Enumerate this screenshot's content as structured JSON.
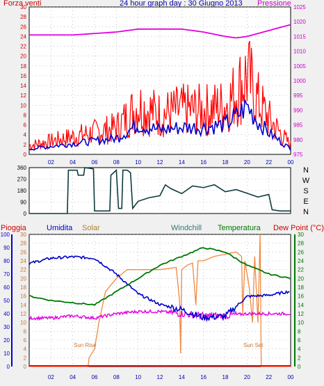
{
  "top": {
    "left_label": "Forza venti",
    "title": "24 hour graph day : 30 Giugno 2013",
    "right_label": "Pressione",
    "y_left_ticks": [
      "30",
      "28",
      "26",
      "24",
      "22",
      "20",
      "18",
      "16",
      "14",
      "12",
      "10",
      "8",
      "6",
      "4",
      "2",
      "0"
    ],
    "y_right_ticks": [
      "1025",
      "1020",
      "1015",
      "1010",
      "1005",
      "1000",
      "995",
      "990",
      "985",
      "980",
      "975"
    ]
  },
  "mid": {
    "y_ticks": [
      "360",
      "270",
      "180",
      "90",
      "0"
    ],
    "compass": [
      "N",
      "W",
      "S",
      "E",
      "N"
    ]
  },
  "bottom": {
    "labels": {
      "pioggia": "Pioggia",
      "umidita": "Umidita",
      "solar": "Solar",
      "windchill": "Windchill",
      "temperatura": "Temperatura",
      "dew": "Dew Point (°C)"
    },
    "y_outer_left": [
      "100",
      "90",
      "80",
      "70",
      "60",
      "50",
      "40",
      "30",
      "20",
      "10",
      "0"
    ],
    "y_inner_left": [
      "30",
      "28",
      "26",
      "24",
      "22",
      "20",
      "18",
      "16",
      "14",
      "12",
      "10",
      "8",
      "6",
      "4",
      "2",
      "0"
    ],
    "y_right": [
      "30",
      "28",
      "26",
      "24",
      "22",
      "20",
      "18",
      "16",
      "14",
      "12",
      "10",
      "8",
      "6",
      "4",
      "2",
      "0"
    ],
    "sun_rise": "Sun Rise",
    "sun_set": "Sun Set"
  },
  "x_ticks": [
    "02",
    "04",
    "06",
    "08",
    "10",
    "12",
    "14",
    "16",
    "18",
    "20",
    "22",
    "00"
  ],
  "colors": {
    "wind": "#ff0000",
    "gust": "#0000cc",
    "pressure": "#e000e0",
    "direction": "#0d3b3b",
    "humidity": "#0000cc",
    "solar": "#f0883e",
    "windchill": "#e000e0",
    "temperature": "#007700",
    "dew": "#e000e0",
    "rain": "#ff0000"
  },
  "chart_data": [
    {
      "type": "line",
      "title": "24 hour graph day : 30 Giugno 2013",
      "x": [
        "00",
        "02",
        "04",
        "06",
        "08",
        "10",
        "12",
        "14",
        "16",
        "18",
        "19",
        "20",
        "21",
        "22",
        "23",
        "24"
      ],
      "ylim_left": [
        0,
        30
      ],
      "ylim_right": [
        975,
        1025
      ],
      "series": [
        {
          "name": "Forza venti",
          "values": [
            2,
            3,
            4,
            5,
            6,
            11,
            9,
            10,
            10,
            11,
            14,
            18,
            12,
            8,
            5,
            2
          ]
        },
        {
          "name": "Pressione",
          "values": [
            1015.5,
            1015.5,
            1015.5,
            1016,
            1016.5,
            1017.5,
            1017.5,
            1017.5,
            1016.5,
            1015,
            1014.5,
            1015,
            1016,
            1017,
            1018,
            1019
          ]
        }
      ]
    },
    {
      "type": "line",
      "x": [
        "00",
        "02",
        "04",
        "06",
        "07",
        "08",
        "09",
        "10",
        "12",
        "14",
        "16",
        "18",
        "20",
        "22",
        "23",
        "24"
      ],
      "ylim": [
        0,
        360
      ],
      "series": [
        {
          "values": [
            0,
            0,
            0,
            0,
            0,
            300,
            300,
            120,
            160,
            210,
            220,
            230,
            190,
            150,
            30,
            20
          ]
        }
      ]
    },
    {
      "type": "line",
      "x": [
        "00",
        "02",
        "04",
        "06",
        "08",
        "10",
        "12",
        "14",
        "16",
        "18",
        "20",
        "22",
        "24"
      ],
      "ylim_left": [
        0,
        100
      ],
      "ylim_right": [
        0,
        30
      ],
      "series": [
        {
          "name": "Umidita",
          "values": [
            78,
            82,
            83,
            82,
            70,
            55,
            47,
            43,
            37,
            38,
            53,
            54,
            57
          ]
        },
        {
          "name": "Solar",
          "values": [
            0,
            0,
            0,
            3,
            18,
            22,
            22,
            24,
            26,
            26,
            25,
            0,
            0
          ]
        },
        {
          "name": "Temperatura",
          "values": [
            16,
            15,
            14.5,
            14,
            17,
            20,
            23,
            25,
            27,
            26,
            23,
            21,
            20
          ]
        },
        {
          "name": "Dew Point",
          "values": [
            11,
            11,
            11.5,
            11,
            12,
            12.5,
            12.5,
            12,
            11.5,
            11.5,
            12,
            12,
            12
          ]
        },
        {
          "name": "Pioggia",
          "values": [
            0,
            0,
            0,
            0,
            0,
            0,
            0,
            0,
            0,
            0,
            0,
            0,
            0
          ]
        }
      ]
    }
  ]
}
